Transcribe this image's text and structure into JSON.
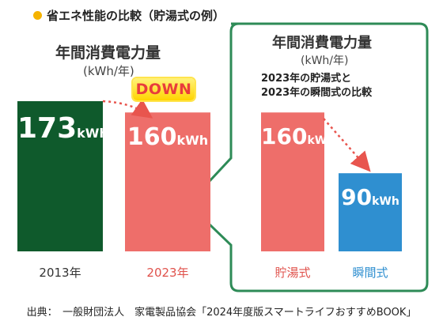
{
  "title": "省エネ性能の比較（貯湯式の例）",
  "colors": {
    "accent_bullet": "#f5b300",
    "dark_green": "#0f5a2c",
    "salmon": "#ee6e6a",
    "blue": "#2f8fd0",
    "panel_border": "#2e8b57",
    "arrow": "#e8554e",
    "salmon_text": "#e0524c"
  },
  "left_panel": {
    "heading": "年間消費電力量",
    "unit": "(kWh/年)",
    "badge": "DOWN"
  },
  "right_panel": {
    "heading": "年間消費電力量",
    "unit": "(kWh/年)",
    "note_line1": "2023年の貯湯式と",
    "note_line2": "2023年の瞬間式の比較"
  },
  "source": "出典：　一般財団法人　家電製品協会「2024年度版スマートライフおすすめBOOK」",
  "chart_data": [
    {
      "type": "bar",
      "categories": [
        "2013年",
        "2023年"
      ],
      "values": [
        173,
        160
      ],
      "value_labels": [
        "173",
        "160"
      ],
      "unit_label": "kWh",
      "title": "年間消費電力量",
      "ylabel": "(kWh/年)"
    },
    {
      "type": "bar",
      "categories": [
        "貯湯式",
        "瞬間式"
      ],
      "values": [
        160,
        90
      ],
      "value_labels": [
        "160",
        "90"
      ],
      "unit_label": "kWh",
      "title": "年間消費電力量",
      "ylabel": "(kWh/年)"
    }
  ]
}
